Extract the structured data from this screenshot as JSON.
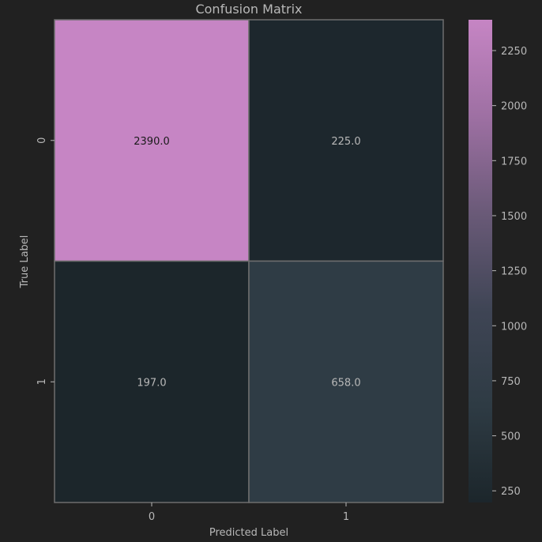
{
  "chart_data": {
    "type": "heatmap",
    "title": "Confusion Matrix",
    "xlabel": "Predicted Label",
    "ylabel": "True Label",
    "x_categories": [
      "0",
      "1"
    ],
    "y_categories": [
      "0",
      "1"
    ],
    "values": [
      [
        2390,
        225
      ],
      [
        197,
        658
      ]
    ],
    "cell_labels": [
      [
        "2390.0",
        "225.0"
      ],
      [
        "197.0",
        "658.0"
      ]
    ],
    "colorbar": {
      "vmin": 197,
      "vmax": 2390,
      "ticks": [
        250,
        500,
        750,
        1000,
        1250,
        1500,
        1750,
        2000,
        2250
      ],
      "tick_labels": [
        "250",
        "500",
        "750",
        "1000",
        "1250",
        "1500",
        "1750",
        "2000",
        "2250"
      ],
      "colors": [
        "#1c262b",
        "#2e3b44",
        "#3f4555",
        "#6a5a78",
        "#9e70a3",
        "#c685c4"
      ]
    },
    "background_color": "#212121",
    "text_color": "#b8b8b8",
    "grid_line_color": "#6e6e6e"
  }
}
